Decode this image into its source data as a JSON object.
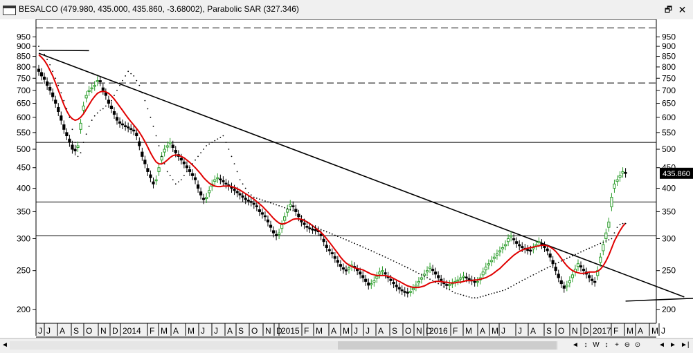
{
  "window": {
    "title": "BESALCO (479.980, 435.000, 435.860, -3.68002), Parabolic SAR (327.346)",
    "restore_icon": "restore-icon",
    "close_icon": "close-icon"
  },
  "toolbar": {
    "scroll_left": "◄",
    "zoom_buttons": [
      "◄",
      "↕",
      "W",
      "↕",
      "+",
      "⊖",
      "⊙"
    ],
    "scroll_right_buttons": [
      "◄",
      "►",
      "►|"
    ]
  },
  "colors": {
    "up": "#2a9d2a",
    "down": "#000000",
    "ma": "#e00000",
    "sar": "#000000",
    "bg": "#ffffff"
  },
  "chart_data": {
    "type": "candlestick",
    "scale": "log",
    "ylim": [
      185,
      1050
    ],
    "yticks": [
      950,
      900,
      850,
      800,
      750,
      700,
      650,
      600,
      550,
      500,
      450,
      400,
      350,
      300,
      250,
      200
    ],
    "last_price_label": "435.860",
    "xticks": [
      "J",
      "J",
      "A",
      "S",
      "O",
      "N",
      "D",
      "2014",
      "F",
      "M",
      "A",
      "M",
      "J",
      "J",
      "A",
      "S",
      "O",
      "N",
      "D",
      "2015",
      "F",
      "M",
      "A",
      "M",
      "J",
      "J",
      "A",
      "S",
      "O",
      "N",
      "D",
      "2016",
      "F",
      "M",
      "A",
      "M",
      "J",
      "J",
      "A",
      "S",
      "O",
      "N",
      "D",
      "2017",
      "F",
      "M",
      "A",
      "M",
      "J"
    ],
    "indicators": [
      "Moving average",
      "Parabolic SAR (327.346)"
    ],
    "horizontal_lines": [
      {
        "value": 1000,
        "style": "dashed"
      },
      {
        "value": 730,
        "style": "dashed"
      },
      {
        "value": 520,
        "style": "solid"
      },
      {
        "value": 370,
        "style": "solid"
      },
      {
        "value": 305,
        "style": "solid"
      }
    ],
    "trendlines": [
      {
        "from": [
          0,
          880
        ],
        "to": [
          18,
          878
        ]
      },
      {
        "from": [
          0,
          865
        ],
        "to": [
          231,
          215
        ]
      },
      {
        "from": [
          210,
          210
        ],
        "to": [
          328,
          227
        ]
      }
    ],
    "close": [
      780,
      760,
      745,
      720,
      700,
      675,
      650,
      620,
      590,
      560,
      540,
      520,
      500,
      495,
      510,
      580,
      640,
      680,
      700,
      710,
      720,
      740,
      735,
      700,
      680,
      650,
      630,
      610,
      590,
      580,
      575,
      570,
      565,
      560,
      555,
      540,
      510,
      480,
      460,
      440,
      425,
      410,
      420,
      450,
      480,
      500,
      510,
      520,
      505,
      490,
      480,
      470,
      460,
      450,
      440,
      430,
      420,
      400,
      385,
      375,
      380,
      395,
      410,
      420,
      425,
      420,
      415,
      410,
      405,
      400,
      395,
      390,
      385,
      380,
      375,
      372,
      370,
      365,
      360,
      350,
      345,
      340,
      330,
      320,
      310,
      305,
      310,
      325,
      340,
      355,
      365,
      360,
      350,
      340,
      330,
      325,
      320,
      318,
      316,
      315,
      312,
      305,
      295,
      285,
      280,
      275,
      268,
      262,
      256,
      252,
      250,
      254,
      258,
      255,
      250,
      245,
      240,
      235,
      230,
      232,
      236,
      242,
      248,
      250,
      245,
      240,
      236,
      232,
      228,
      225,
      223,
      221,
      220,
      222,
      226,
      230,
      235,
      240,
      245,
      250,
      255,
      250,
      245,
      240,
      236,
      232,
      230,
      231,
      233,
      235,
      237,
      240,
      242,
      240,
      238,
      236,
      234,
      235,
      240,
      248,
      255,
      260,
      265,
      270,
      275,
      280,
      285,
      290,
      300,
      305,
      298,
      292,
      288,
      285,
      283,
      281,
      280,
      285,
      290,
      295,
      290,
      285,
      280,
      270,
      260,
      250,
      240,
      232,
      226,
      230,
      236,
      244,
      252,
      260,
      255,
      250,
      245,
      240,
      236,
      234,
      250,
      270,
      290,
      310,
      330,
      380,
      410,
      420,
      430,
      440,
      436
    ],
    "open": [
      790,
      775,
      755,
      735,
      712,
      690,
      662,
      635,
      605,
      575,
      550,
      530,
      512,
      500,
      505,
      560,
      625,
      670,
      695,
      706,
      716,
      736,
      740,
      710,
      690,
      662,
      640,
      620,
      600,
      585,
      578,
      572,
      568,
      563,
      558,
      548,
      522,
      492,
      470,
      448,
      432,
      415,
      418,
      440,
      470,
      492,
      506,
      516,
      512,
      497,
      485,
      475,
      465,
      455,
      445,
      435,
      425,
      408,
      392,
      378,
      377,
      390,
      404,
      416,
      423,
      422,
      418,
      412,
      408,
      403,
      398,
      393,
      388,
      383,
      378,
      374,
      371,
      367,
      362,
      354,
      348,
      342,
      334,
      324,
      314,
      307,
      307,
      318,
      333,
      349,
      361,
      362,
      355,
      345,
      335,
      328,
      322,
      319,
      317,
      316,
      314,
      308,
      299,
      289,
      282,
      277,
      271,
      265,
      259,
      254,
      251,
      252,
      256,
      256,
      252,
      248,
      243,
      238,
      233,
      231,
      234,
      239,
      245,
      249,
      247,
      242,
      238,
      234,
      230,
      227,
      224,
      222,
      221,
      221,
      224,
      228,
      233,
      238,
      243,
      248,
      253,
      252,
      248,
      243,
      238,
      234,
      231,
      230,
      232,
      234,
      236,
      238,
      241,
      241,
      239,
      237,
      235,
      234,
      237,
      244,
      251,
      258,
      263,
      268,
      273,
      278,
      283,
      288,
      295,
      303,
      300,
      295,
      290,
      287,
      284,
      282,
      281,
      283,
      288,
      293,
      292,
      288,
      283,
      275,
      265,
      255,
      245,
      236,
      229,
      228,
      233,
      240,
      248,
      256,
      257,
      252,
      248,
      243,
      238,
      235,
      243,
      262,
      280,
      300,
      320,
      360,
      400,
      416,
      426,
      436,
      438
    ],
    "ma": [
      858,
      845,
      830,
      810,
      785,
      760,
      730,
      700,
      672,
      645,
      622,
      605,
      595,
      590,
      593,
      600,
      612,
      628,
      645,
      662,
      676,
      688,
      694,
      696,
      694,
      688,
      678,
      666,
      652,
      638,
      624,
      610,
      597,
      585,
      574,
      563,
      551,
      537,
      522,
      506,
      490,
      476,
      465,
      460,
      460,
      464,
      470,
      477,
      482,
      484,
      483,
      480,
      476,
      470,
      464,
      457,
      450,
      442,
      434,
      425,
      418,
      412,
      408,
      405,
      404,
      404,
      405,
      405,
      405,
      404,
      402,
      399,
      396,
      392,
      388,
      384,
      380,
      376,
      371,
      366,
      361,
      355,
      349,
      343,
      337,
      332,
      328,
      326,
      327,
      329,
      332,
      335,
      336,
      336,
      335,
      333,
      330,
      327,
      323,
      319,
      315,
      311,
      306,
      300,
      294,
      288,
      282,
      276,
      270,
      265,
      261,
      258,
      256,
      254,
      253,
      252,
      251,
      249,
      247,
      245,
      244,
      243,
      243,
      243,
      243,
      242,
      241,
      239,
      237,
      235,
      233,
      231,
      229,
      228,
      227,
      227,
      227,
      228,
      229,
      231,
      233,
      234,
      235,
      235,
      235,
      234,
      234,
      233,
      233,
      233,
      234,
      234,
      235,
      236,
      236,
      236,
      237,
      237,
      238,
      239,
      240,
      242,
      244,
      247,
      250,
      253,
      257,
      261,
      265,
      269,
      273,
      276,
      279,
      281,
      283,
      284,
      285,
      286,
      287,
      288,
      289,
      289,
      288,
      286,
      283,
      279,
      274,
      268,
      262,
      257,
      253,
      250,
      248,
      247,
      246,
      246,
      247,
      248,
      248,
      248,
      249,
      252,
      257,
      264,
      273,
      284,
      296,
      305,
      314,
      322,
      328
    ],
    "sar": [
      900,
      880,
      860,
      835,
      810,
      780,
      750,
      720,
      690,
      660,
      630,
      600,
      560,
      520,
      480,
      490,
      520,
      545,
      570,
      590,
      605,
      615,
      625,
      630,
      640,
      650,
      660,
      680,
      700,
      720,
      740,
      760,
      780,
      770,
      760,
      740,
      720,
      690,
      660,
      630,
      600,
      570,
      540,
      510,
      480,
      460,
      440,
      430,
      420,
      410,
      415,
      420,
      430,
      440,
      450,
      460,
      470,
      480,
      490,
      500,
      510,
      515,
      520,
      525,
      530,
      535,
      540,
      520,
      500,
      480,
      460,
      440,
      420,
      410,
      400,
      390,
      385,
      380,
      378,
      376,
      374,
      372,
      370,
      368,
      366,
      364,
      362,
      360,
      358,
      356,
      354,
      352,
      350,
      345,
      340,
      335,
      330,
      325,
      322,
      320,
      318,
      316,
      314,
      312,
      310,
      308,
      306,
      304,
      302,
      300,
      298,
      296,
      294,
      292,
      290,
      288,
      286,
      284,
      282,
      280,
      278,
      276,
      274,
      272,
      270,
      268,
      266,
      264,
      262,
      260,
      258,
      256,
      254,
      252,
      250,
      248,
      246,
      244,
      242,
      240,
      238,
      236,
      234,
      232,
      230,
      228,
      226,
      224,
      222,
      220,
      219,
      218,
      217,
      216,
      215,
      214,
      214,
      214,
      215,
      216,
      217,
      218,
      219,
      220,
      221,
      222,
      223,
      224,
      226,
      228,
      230,
      232,
      234,
      236,
      238,
      240,
      242,
      244,
      246,
      248,
      250,
      252,
      254,
      256,
      258,
      260,
      262,
      264,
      266,
      268,
      270,
      272,
      274,
      276,
      278,
      280,
      282,
      284,
      286,
      288,
      290,
      292,
      294,
      296,
      298,
      300,
      310,
      320,
      325,
      327,
      327
    ]
  }
}
